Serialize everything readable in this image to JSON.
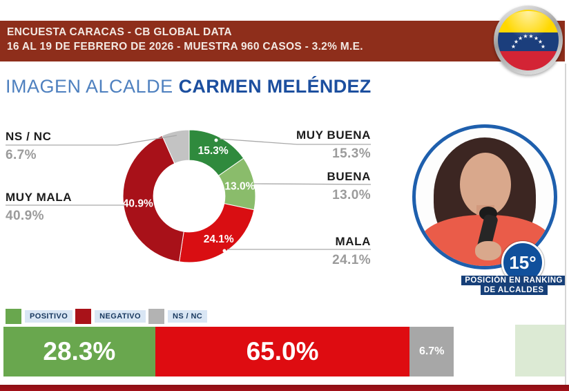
{
  "header": {
    "line1": "ENCUESTA CARACAS - CB GLOBAL DATA",
    "line2": "16 AL 19 DE FEBRERO DE 2026 - MUESTRA 960 CASOS - 3.2% M.E.",
    "bg_color": "#8e2e1b",
    "text_color": "#f3e9e3"
  },
  "title": {
    "prefix": "IMAGEN ALCALDE ",
    "name": "CARMEN MELÉNDEZ",
    "prefix_color": "#4e80bf",
    "name_color": "#1c4f9f"
  },
  "flag": {
    "name": "venezuela-flag",
    "yellow": "#ffd800",
    "blue": "#1b3e7c",
    "red": "#d32435",
    "star_count": 8
  },
  "chart_data": {
    "type": "pie",
    "title": "IMAGEN ALCALDE CARMEN MELÉNDEZ",
    "donut": {
      "inner_radius_ratio": 0.54,
      "segments": [
        {
          "label": "MUY BUENA",
          "value": 15.3,
          "display": "15.3%",
          "color": "#2f8a3d",
          "inner_label": true
        },
        {
          "label": "BUENA",
          "value": 13.0,
          "display": "13.0%",
          "color": "#8abc6b",
          "inner_label": true
        },
        {
          "label": "MALA",
          "value": 24.1,
          "display": "24.1%",
          "color": "#d90e12",
          "inner_label": true
        },
        {
          "label": "MUY MALA",
          "value": 40.9,
          "display": "40.9%",
          "color": "#a81119",
          "inner_label": true
        },
        {
          "label": "NS / NC",
          "value": 6.7,
          "display": "6.7%",
          "color": "#c3c3c3",
          "inner_label": false
        }
      ]
    },
    "summary_bar": {
      "segments": [
        {
          "label": "POSITIVO",
          "value": 28.3,
          "display": "28.3%",
          "color": "#69a74e"
        },
        {
          "label": "NEGATIVO",
          "value": 65.0,
          "display": "65.0%",
          "color": "#de0c11"
        },
        {
          "label": "NS / NC",
          "value": 6.7,
          "display": "6.7%",
          "color": "#a7a7a7"
        }
      ]
    }
  },
  "legend": {
    "items": [
      {
        "label": "POSITIVO",
        "color": "#69a74e"
      },
      {
        "label": "NEGATIVO",
        "color": "#a91219"
      },
      {
        "label": "NS / NC",
        "color": "#b3b3b3"
      }
    ]
  },
  "ranking": {
    "badge": "15°",
    "badge_color": "#10509c",
    "caption_line1": "POSICIÓN EN RANKING",
    "caption_line2": "DE ALCALDES",
    "caption_color": "#163f78"
  }
}
